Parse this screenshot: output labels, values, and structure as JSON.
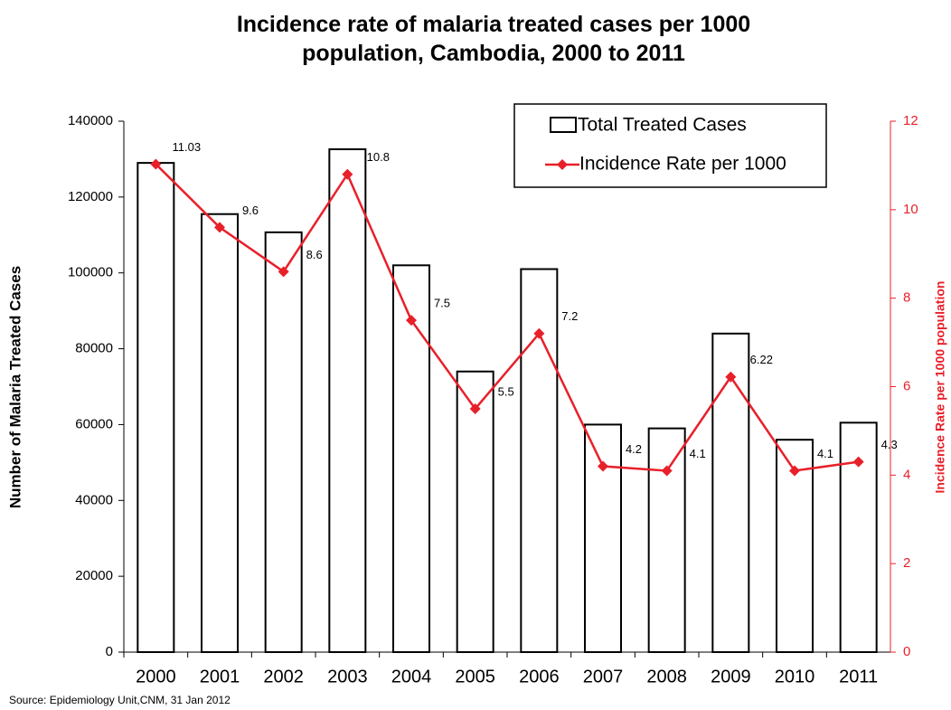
{
  "chart_data": {
    "type": "bar-line",
    "title": "Incidence rate of malaria treated cases per 1000 population, Cambodia, 2000 to 2011",
    "categories": [
      "2000",
      "2001",
      "2002",
      "2003",
      "2004",
      "2005",
      "2006",
      "2007",
      "2008",
      "2009",
      "2010",
      "2011"
    ],
    "series": [
      {
        "name": "Total Treated Cases",
        "type": "bar",
        "color": "#ffffff",
        "values": [
          129000,
          115500,
          110700,
          132600,
          102000,
          74000,
          101000,
          60000,
          59000,
          84000,
          56000,
          60500
        ]
      },
      {
        "name": "Incidence Rate per 1000",
        "type": "line",
        "axis": "y2",
        "color": "#e8202a",
        "values": [
          11.03,
          9.6,
          8.6,
          10.8,
          7.5,
          5.5,
          7.2,
          4.2,
          4.1,
          6.22,
          4.1,
          4.3
        ]
      }
    ],
    "ylabel": "Number of Malaria Treated Cases",
    "y2label": "Incidence Rate per 1000 population",
    "ylim": [
      0,
      140000
    ],
    "yticks": [
      0,
      20000,
      40000,
      60000,
      80000,
      100000,
      120000,
      140000
    ],
    "y2lim": [
      0,
      12
    ],
    "y2ticks": [
      0,
      2,
      4,
      6,
      8,
      10,
      12
    ],
    "source": "Source: Epidemiology Unit,CNM, 31 Jan 2012",
    "legend": "top-right",
    "grid": false
  }
}
